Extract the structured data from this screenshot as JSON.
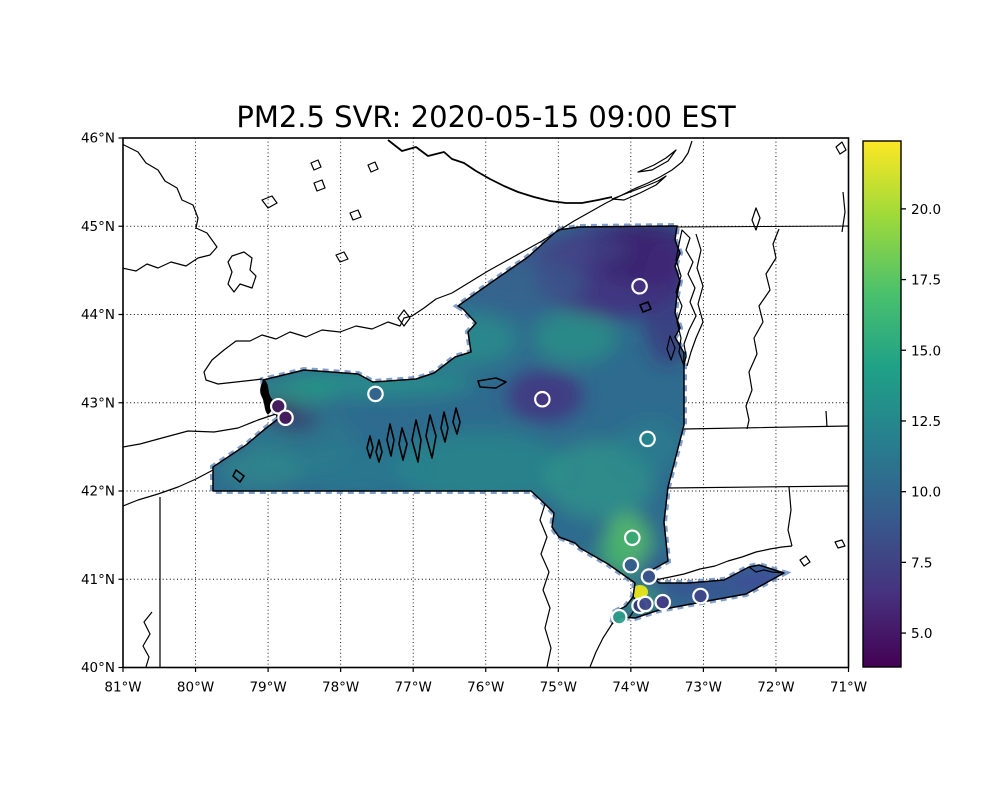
{
  "title": "PM2.5 SVR: 2020-05-15 09:00 EST",
  "chart_data": {
    "type": "heatmap",
    "subtype": "geographic PM2.5 prediction field over New York State with monitoring stations",
    "title": "PM2.5 SVR: 2020-05-15 09:00 EST",
    "grid": "dotted graticule every 1 degree",
    "x_axis": {
      "range": [
        -81,
        -71
      ],
      "ticks": [
        {
          "v": -81,
          "label": "81°W"
        },
        {
          "v": -80,
          "label": "80°W"
        },
        {
          "v": -79,
          "label": "79°W"
        },
        {
          "v": -78,
          "label": "78°W"
        },
        {
          "v": -77,
          "label": "77°W"
        },
        {
          "v": -76,
          "label": "76°W"
        },
        {
          "v": -75,
          "label": "75°W"
        },
        {
          "v": -74,
          "label": "74°W"
        },
        {
          "v": -73,
          "label": "73°W"
        },
        {
          "v": -72,
          "label": "72°W"
        },
        {
          "v": -71,
          "label": "71°W"
        }
      ]
    },
    "y_axis": {
      "range": [
        40,
        46
      ],
      "ticks": [
        {
          "v": 46,
          "label": "46°N"
        },
        {
          "v": 45,
          "label": "45°N"
        },
        {
          "v": 44,
          "label": "44°N"
        },
        {
          "v": 43,
          "label": "43°N"
        },
        {
          "v": 42,
          "label": "42°N"
        },
        {
          "v": 41,
          "label": "41°N"
        },
        {
          "v": 40,
          "label": "40°N"
        }
      ]
    },
    "colorbar": {
      "colormap": "viridis",
      "range_est": [
        3.8,
        22.4
      ],
      "ticks": [
        {
          "v": 5.0,
          "label": "5.0"
        },
        {
          "v": 7.5,
          "label": "7.5"
        },
        {
          "v": 10.0,
          "label": "10.0"
        },
        {
          "v": 12.5,
          "label": "12.5"
        },
        {
          "v": 15.0,
          "label": "15.0"
        },
        {
          "v": 17.5,
          "label": "17.5"
        },
        {
          "v": 20.0,
          "label": "20.0"
        }
      ]
    },
    "field_summary": [
      {
        "region": "Adirondacks (NE NY)",
        "pm25_est": "5-7 (dark purple)"
      },
      {
        "region": "St. Lawrence / north strip",
        "pm25_est": "8-10 (blue)"
      },
      {
        "region": "Western & central NY",
        "pm25_est": "11-14 (teal with green mottling)"
      },
      {
        "region": "Lower Hudson Valley",
        "pm25_est": "15-18 (green)"
      },
      {
        "region": "NYC hotspot",
        "pm25_est": "~21 (yellow spot)"
      },
      {
        "region": "Long Island",
        "pm25_est": "8-11 (blue)"
      }
    ],
    "stations": [
      {
        "lon": -78.86,
        "lat": 42.96,
        "pm25_est": 5.0,
        "color": "#441a5c"
      },
      {
        "lon": -78.76,
        "lat": 42.83,
        "pm25_est": 5.0,
        "color": "#421a5a"
      },
      {
        "lon": -77.52,
        "lat": 43.1,
        "pm25_est": 10.0,
        "color": "#33638d"
      },
      {
        "lon": -75.22,
        "lat": 43.04,
        "pm25_est": 7.0,
        "color": "#453781"
      },
      {
        "lon": -73.88,
        "lat": 44.32,
        "pm25_est": 7.0,
        "color": "#46327e"
      },
      {
        "lon": -73.77,
        "lat": 42.59,
        "pm25_est": 12.5,
        "color": "#25848e"
      },
      {
        "lon": -73.98,
        "lat": 41.47,
        "pm25_est": 16.0,
        "color": "#38a873"
      },
      {
        "lon": -74.0,
        "lat": 41.16,
        "pm25_est": 9.5,
        "color": "#365c8d"
      },
      {
        "lon": -73.75,
        "lat": 41.03,
        "pm25_est": 9.0,
        "color": "#3a538b"
      },
      {
        "lon": -74.16,
        "lat": 40.57,
        "pm25_est": 14.0,
        "color": "#2e9d8a"
      },
      {
        "lon": -73.88,
        "lat": 40.7,
        "pm25_est": 7.5,
        "color": "#363d7d"
      },
      {
        "lon": -73.8,
        "lat": 40.72,
        "pm25_est": 8.5,
        "color": "#3d4a89"
      },
      {
        "lon": -73.56,
        "lat": 40.74,
        "pm25_est": 7.5,
        "color": "#433c84"
      },
      {
        "lon": -73.04,
        "lat": 40.81,
        "pm25_est": 8.0,
        "color": "#3f4788"
      }
    ]
  }
}
